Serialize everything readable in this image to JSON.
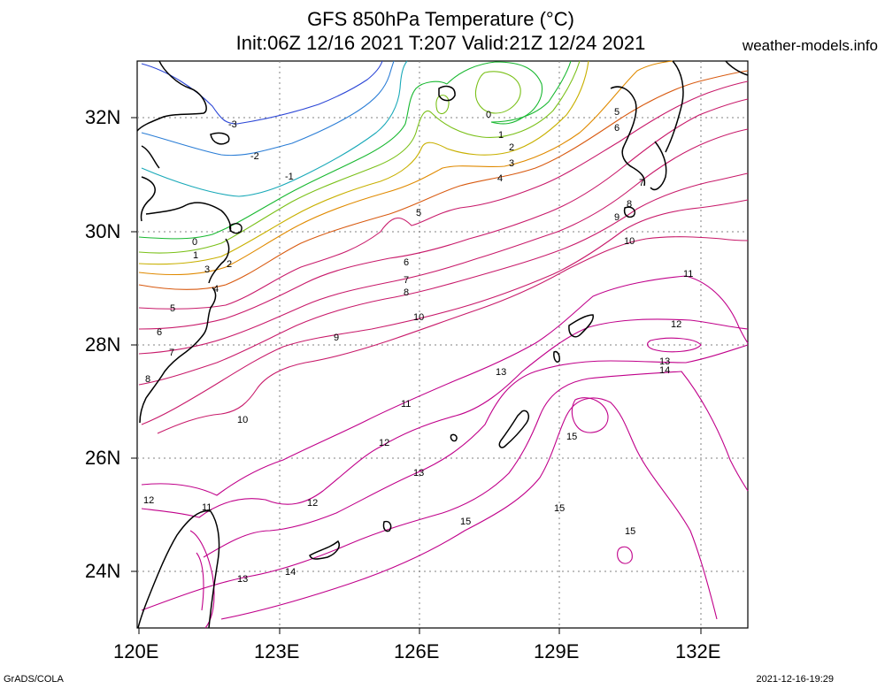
{
  "header": {
    "title_line1": "GFS 850hPa Temperature (°C)",
    "title_line2": "Init:06Z 12/16 2021 T:207 Valid:21Z 12/24 2021",
    "site": "weather-models.info"
  },
  "axes": {
    "lat_labels": [
      "32N",
      "30N",
      "28N",
      "26N",
      "24N"
    ],
    "lon_labels": [
      "120E",
      "123E",
      "126E",
      "129E",
      "132E"
    ]
  },
  "footer": {
    "left": "GrADS/COLA",
    "right": "2021-12-16-19:29"
  },
  "contour_labels": [
    "-3",
    "-2",
    "-1",
    "0",
    "1",
    "2",
    "3",
    "4",
    "5",
    "6",
    "7",
    "8",
    "9",
    "10",
    "11",
    "12",
    "13",
    "14",
    "15"
  ],
  "colors": {
    "c_m3": "#2a45d6",
    "c_m2": "#2a7dd6",
    "c_m1": "#19a9b8",
    "c_0": "#18b830",
    "c_1": "#7ac018",
    "c_2": "#c8b000",
    "c_3": "#e08a00",
    "c_4": "#d85a10",
    "c_warm": "#c81a6a",
    "c_hot": "#c0008a",
    "coast": "#000000",
    "grid": "#808080"
  }
}
